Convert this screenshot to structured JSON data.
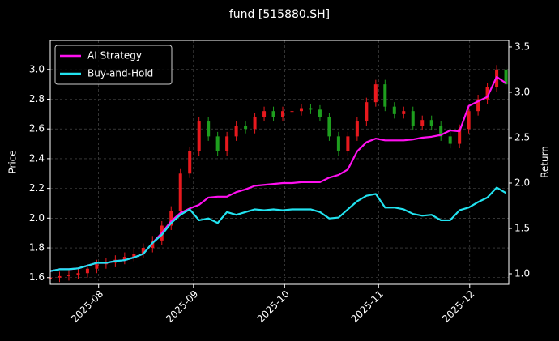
{
  "chart_data": {
    "type": "candlestick",
    "title": "fund [515880.SH]",
    "ylabel": "Price",
    "y2label": "Return",
    "up_color": "#e8191e",
    "down_color": "#1e9e1e",
    "open": [
      1.59,
      1.6,
      1.61,
      1.62,
      1.63,
      1.66,
      1.69,
      1.7,
      1.72,
      1.74,
      1.76,
      1.8,
      1.85,
      1.95,
      2.05,
      2.3,
      2.45,
      2.65,
      2.55,
      2.45,
      2.55,
      2.62,
      2.6,
      2.68,
      2.72,
      2.68,
      2.72,
      2.72,
      2.74,
      2.73,
      2.68,
      2.55,
      2.45,
      2.55,
      2.65,
      2.78,
      2.9,
      2.75,
      2.7,
      2.72,
      2.62,
      2.66,
      2.62,
      2.55,
      2.5,
      2.6,
      2.72,
      2.8,
      2.88,
      3.0
    ],
    "high": [
      1.63,
      1.64,
      1.65,
      1.66,
      1.69,
      1.72,
      1.73,
      1.75,
      1.77,
      1.79,
      1.83,
      1.88,
      1.98,
      2.08,
      2.33,
      2.48,
      2.68,
      2.68,
      2.58,
      2.58,
      2.65,
      2.65,
      2.71,
      2.75,
      2.75,
      2.75,
      2.75,
      2.77,
      2.77,
      2.76,
      2.71,
      2.58,
      2.58,
      2.68,
      2.81,
      2.93,
      2.93,
      2.78,
      2.75,
      2.75,
      2.69,
      2.69,
      2.65,
      2.58,
      2.63,
      2.75,
      2.83,
      2.91,
      3.03,
      3.03
    ],
    "low": [
      1.56,
      1.57,
      1.58,
      1.59,
      1.6,
      1.63,
      1.66,
      1.67,
      1.69,
      1.71,
      1.73,
      1.77,
      1.82,
      1.92,
      2.02,
      2.27,
      2.42,
      2.52,
      2.42,
      2.42,
      2.52,
      2.57,
      2.57,
      2.65,
      2.65,
      2.65,
      2.69,
      2.69,
      2.7,
      2.65,
      2.52,
      2.42,
      2.42,
      2.52,
      2.62,
      2.75,
      2.72,
      2.67,
      2.67,
      2.59,
      2.59,
      2.59,
      2.52,
      2.47,
      2.47,
      2.57,
      2.69,
      2.77,
      2.85,
      2.87
    ],
    "close": [
      1.6,
      1.61,
      1.62,
      1.63,
      1.66,
      1.69,
      1.7,
      1.72,
      1.74,
      1.76,
      1.8,
      1.85,
      1.95,
      2.05,
      2.3,
      2.45,
      2.65,
      2.55,
      2.45,
      2.55,
      2.62,
      2.6,
      2.68,
      2.72,
      2.68,
      2.72,
      2.72,
      2.74,
      2.73,
      2.68,
      2.55,
      2.45,
      2.55,
      2.65,
      2.78,
      2.9,
      2.75,
      2.7,
      2.72,
      2.62,
      2.66,
      2.62,
      2.55,
      2.5,
      2.6,
      2.72,
      2.8,
      2.88,
      3.0,
      2.9
    ],
    "series": [
      {
        "name": "AI Strategy",
        "color": "#ff10f0",
        "axis": "y2",
        "values": [
          1.03,
          1.05,
          1.05,
          1.06,
          1.09,
          1.12,
          1.12,
          1.14,
          1.15,
          1.18,
          1.22,
          1.34,
          1.45,
          1.58,
          1.67,
          1.72,
          1.76,
          1.84,
          1.85,
          1.85,
          1.9,
          1.93,
          1.97,
          1.98,
          1.99,
          2.0,
          2.0,
          2.01,
          2.01,
          2.01,
          2.06,
          2.09,
          2.15,
          2.35,
          2.45,
          2.49,
          2.47,
          2.47,
          2.47,
          2.48,
          2.5,
          2.51,
          2.53,
          2.58,
          2.57,
          2.85,
          2.9,
          2.95,
          3.17,
          3.1
        ]
      },
      {
        "name": "Buy-and-Hold",
        "color": "#22e3f0",
        "axis": "y2",
        "values": [
          1.03,
          1.05,
          1.05,
          1.06,
          1.09,
          1.12,
          1.12,
          1.14,
          1.15,
          1.18,
          1.22,
          1.34,
          1.43,
          1.56,
          1.65,
          1.71,
          1.59,
          1.61,
          1.56,
          1.68,
          1.65,
          1.68,
          1.71,
          1.7,
          1.71,
          1.7,
          1.71,
          1.71,
          1.71,
          1.68,
          1.61,
          1.62,
          1.71,
          1.8,
          1.86,
          1.88,
          1.73,
          1.73,
          1.71,
          1.66,
          1.64,
          1.65,
          1.59,
          1.59,
          1.7,
          1.73,
          1.79,
          1.84,
          1.95,
          1.89
        ]
      }
    ],
    "xlim": [
      0,
      49.3
    ],
    "xticks": [
      {
        "value": 5.2,
        "label": "2025-08"
      },
      {
        "value": 15.4,
        "label": "2025-09"
      },
      {
        "value": 25.2,
        "label": "2025-10"
      },
      {
        "value": 35.3,
        "label": "2025-11"
      },
      {
        "value": 45.1,
        "label": "2025-12"
      }
    ],
    "ylim": [
      1.555,
      3.195
    ],
    "yticks": [
      1.6,
      1.8,
      {
        "value": 2,
        "label": "2.0"
      },
      2.2,
      2.4,
      2.6,
      2.8,
      {
        "value": 3,
        "label": "3.0"
      }
    ],
    "y2lim": [
      0.884,
      3.571
    ],
    "y2ticks": [
      {
        "value": 1,
        "label": "1.0"
      },
      1.5,
      {
        "value": 2,
        "label": "2.0"
      },
      2.5,
      {
        "value": 3,
        "label": "3.0"
      },
      3.5
    ],
    "grid": true,
    "legend": "upper left"
  }
}
